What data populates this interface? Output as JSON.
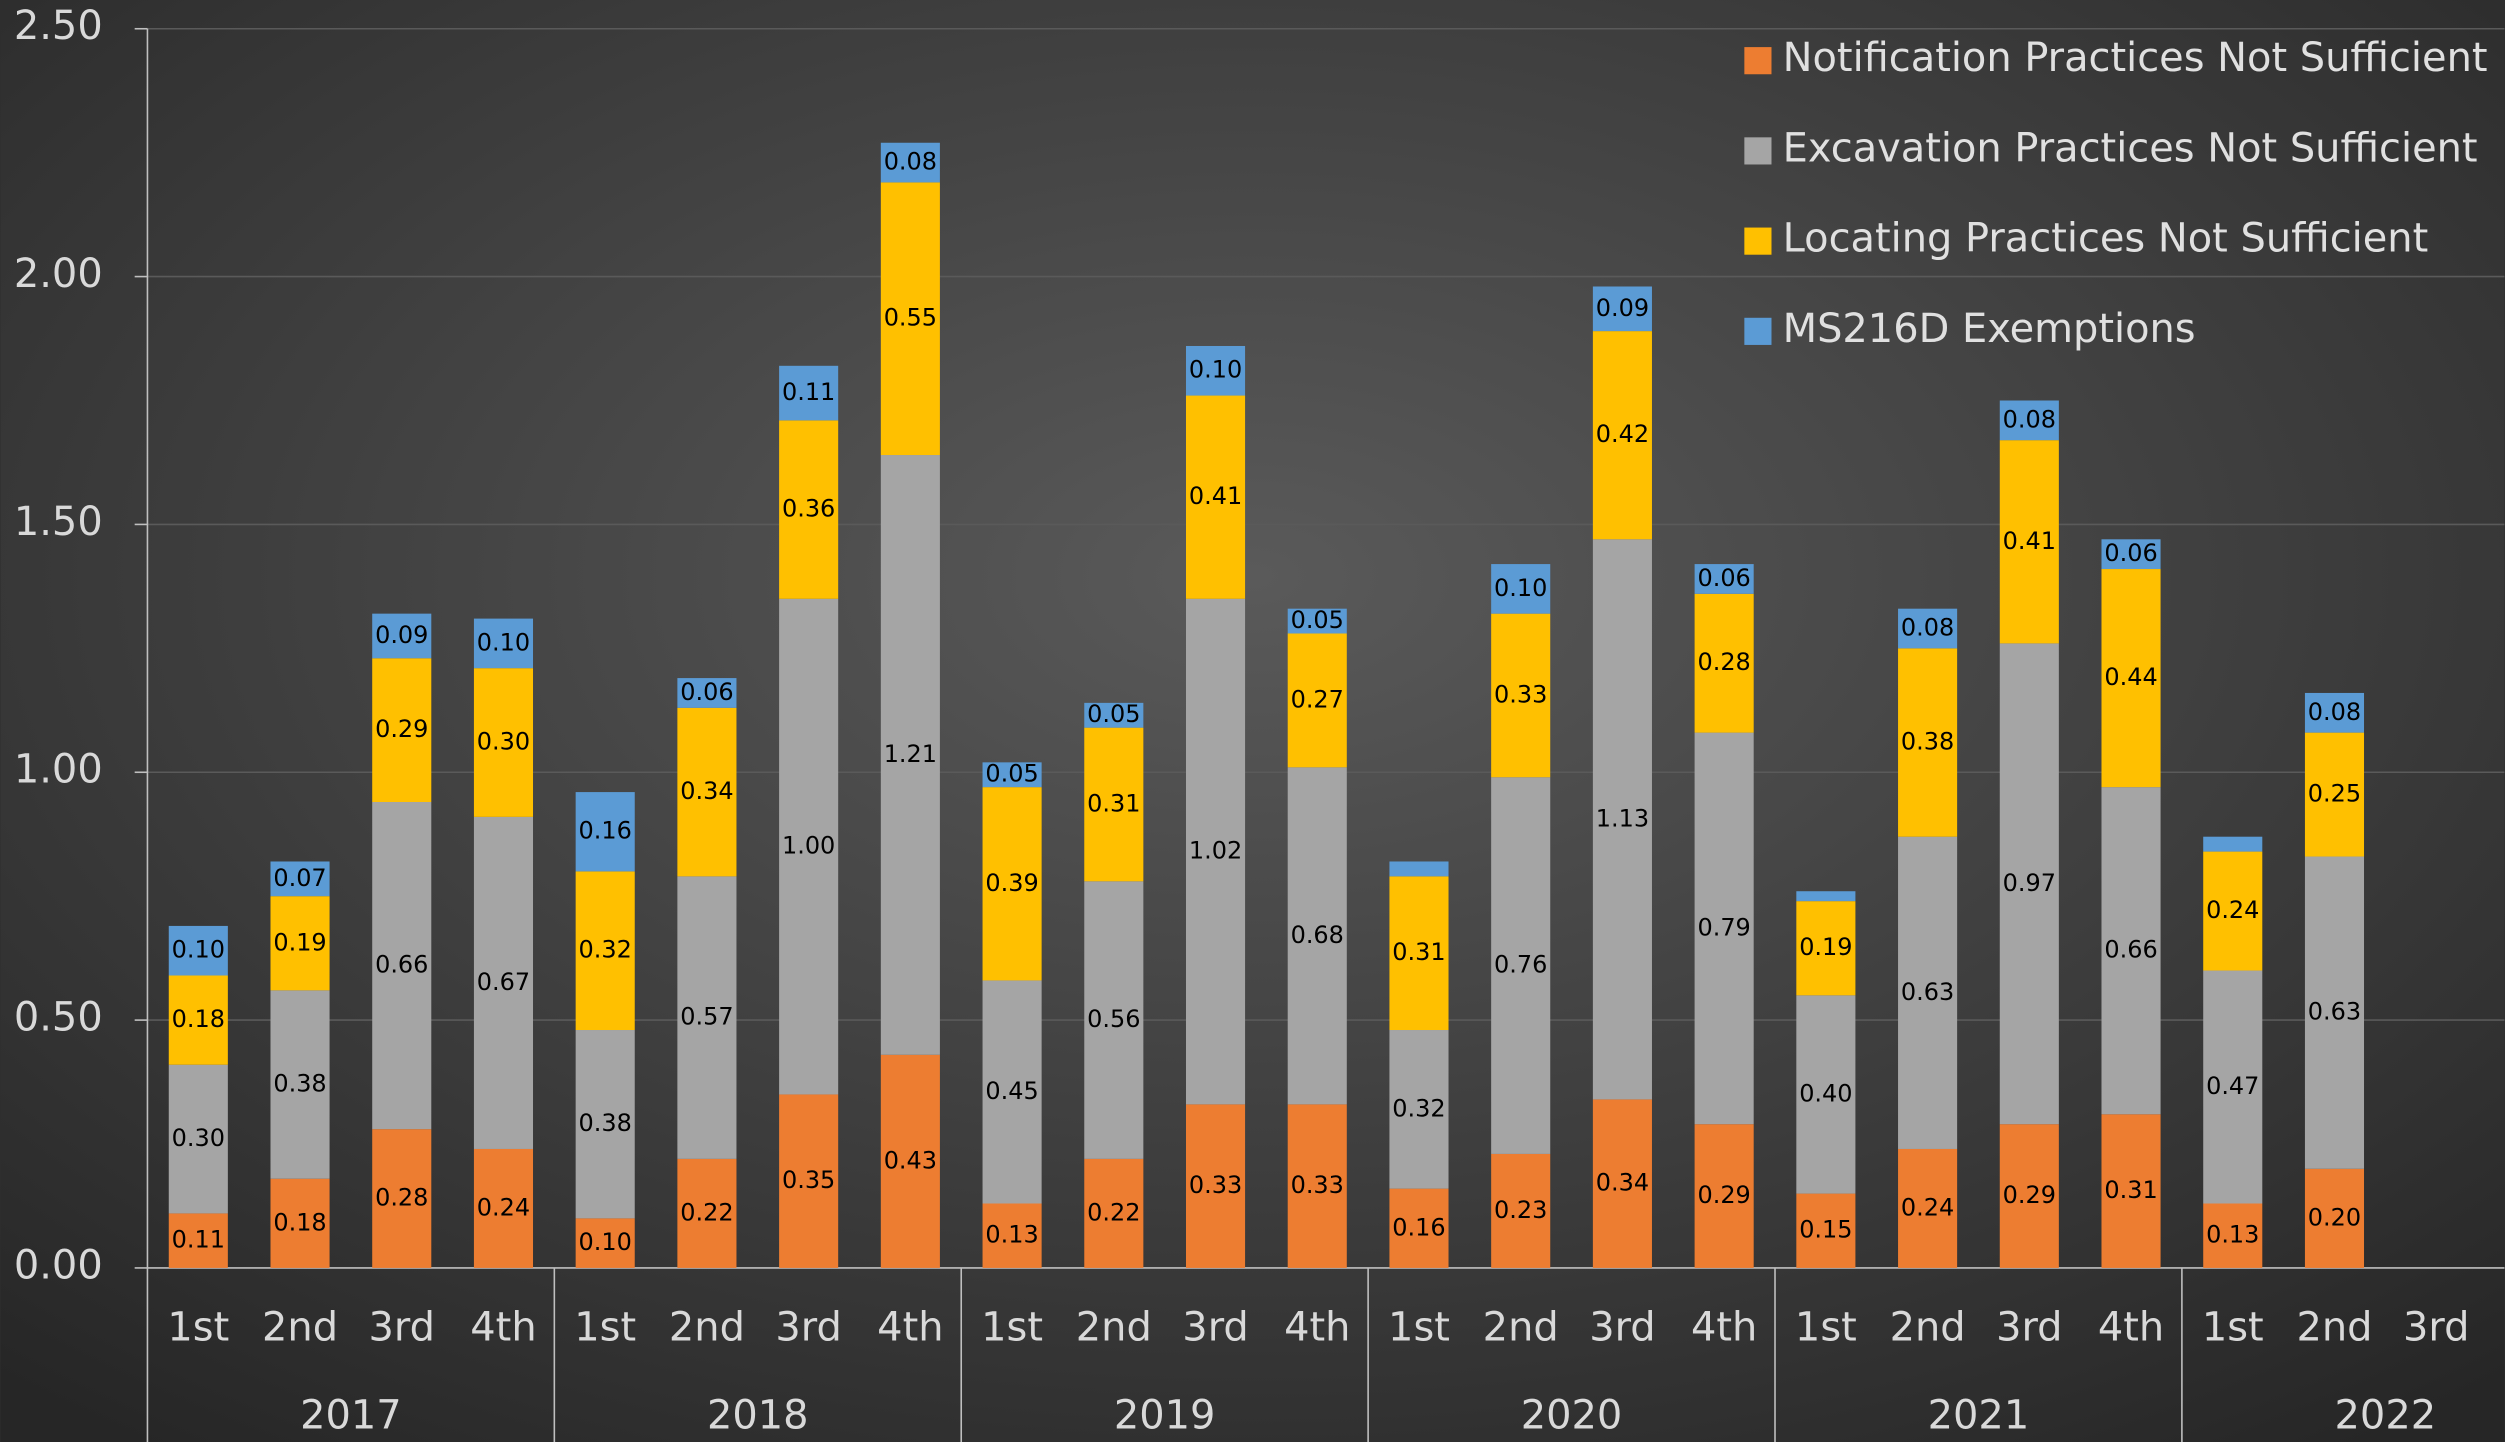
{
  "chart_data": {
    "type": "stacked_bar",
    "categories": [
      "1st",
      "2nd",
      "3rd",
      "4th",
      "1st",
      "2nd",
      "3rd",
      "4th",
      "1st",
      "2nd",
      "3rd",
      "4th",
      "1st",
      "2nd",
      "3rd",
      "4th",
      "1st",
      "2nd",
      "3rd",
      "4th",
      "1st",
      "2nd",
      "3rd"
    ],
    "years": [
      "2017",
      "2018",
      "2019",
      "2020",
      "2021",
      "2022"
    ],
    "series": [
      {
        "name": "Notification Practices Not Sufficient",
        "color": "#ed7d31",
        "values": [
          0.11,
          0.18,
          0.28,
          0.24,
          0.1,
          0.22,
          0.35,
          0.43,
          0.13,
          0.22,
          0.33,
          0.33,
          0.16,
          0.23,
          0.34,
          0.29,
          0.15,
          0.24,
          0.29,
          0.31,
          0.13,
          0.2,
          null
        ],
        "value_labels": [
          "0.11",
          "0.18",
          "0.28",
          "0.24",
          "0.10",
          "0.22",
          "0.35",
          "0.43",
          "0.13",
          "0.22",
          "0.33",
          "0.33",
          "0.16",
          "0.23",
          "0.34",
          "0.29",
          "0.15",
          "0.24",
          "0.29",
          "0.31",
          "0.13",
          "0.20",
          null
        ]
      },
      {
        "name": "Excavation Practices Not Sufficient",
        "color": "#a5a5a5",
        "values": [
          0.3,
          0.38,
          0.66,
          0.67,
          0.38,
          0.57,
          1.0,
          1.21,
          0.45,
          0.56,
          1.02,
          0.68,
          0.32,
          0.76,
          1.13,
          0.79,
          0.4,
          0.63,
          0.97,
          0.66,
          0.47,
          0.63,
          null
        ],
        "value_labels": [
          "0.30",
          "0.38",
          "0.66",
          "0.67",
          "0.38",
          "0.57",
          "1.00",
          "1.21",
          "0.45",
          "0.56",
          "1.02",
          "0.68",
          "0.32",
          "0.76",
          "1.13",
          "0.79",
          "0.40",
          "0.63",
          "0.97",
          "0.66",
          "0.47",
          "0.63",
          null
        ]
      },
      {
        "name": "Locating Practices Not Sufficient",
        "color": "#ffc000",
        "values": [
          0.18,
          0.19,
          0.29,
          0.3,
          0.32,
          0.34,
          0.36,
          0.55,
          0.39,
          0.31,
          0.41,
          0.27,
          0.31,
          0.33,
          0.42,
          0.28,
          0.19,
          0.38,
          0.41,
          0.44,
          0.24,
          0.25,
          null
        ],
        "value_labels": [
          "0.18",
          "0.19",
          "0.29",
          "0.30",
          "0.32",
          "0.34",
          "0.36",
          "0.55",
          "0.39",
          "0.31",
          "0.41",
          "0.27",
          "0.31",
          "0.33",
          "0.42",
          "0.28",
          "0.19",
          "0.38",
          "0.41",
          "0.44",
          "0.24",
          "0.25",
          null
        ]
      },
      {
        "name": "MS216D Exemptions",
        "color": "#5b9bd5",
        "values": [
          0.1,
          0.07,
          0.09,
          0.1,
          0.16,
          0.06,
          0.11,
          0.08,
          0.05,
          0.05,
          0.1,
          0.05,
          0.03,
          0.1,
          0.09,
          0.06,
          0.02,
          0.08,
          0.08,
          0.06,
          0.03,
          0.08,
          null
        ],
        "value_labels": [
          "0.10",
          "0.07",
          "0.09",
          "0.10",
          "0.16",
          "0.06",
          "0.11",
          "0.08",
          "0.05",
          "0.05",
          "0.10",
          "0.05",
          null,
          "0.10",
          "0.09",
          "0.06",
          null,
          "0.08",
          "0.08",
          "0.06",
          null,
          "0.08",
          null
        ]
      }
    ],
    "ylim": [
      0,
      2.5
    ],
    "yticks": [
      {
        "value": 0,
        "label": "0.00"
      },
      {
        "value": 0.5,
        "label": "0.50"
      },
      {
        "value": 1,
        "label": "1.00"
      },
      {
        "value": 1.5,
        "label": "1.50"
      },
      {
        "value": 2,
        "label": "2.00"
      },
      {
        "value": 2.5,
        "label": "2.50"
      }
    ],
    "grid": true,
    "legend": "top-right"
  }
}
